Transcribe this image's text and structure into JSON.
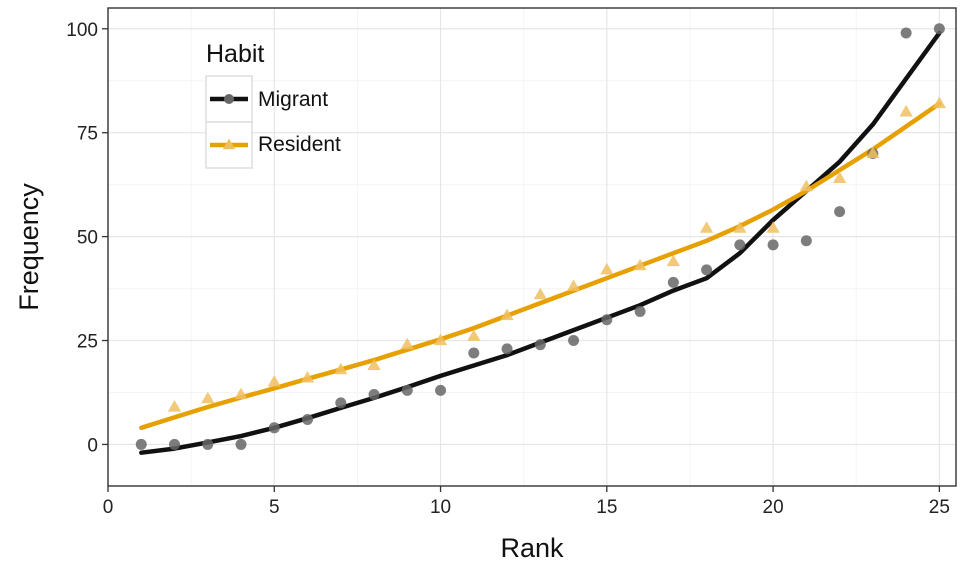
{
  "chart_data": {
    "type": "scatter",
    "xlabel": "Rank",
    "ylabel": "Frequency",
    "xlim": [
      0,
      25.5
    ],
    "ylim": [
      -10,
      105
    ],
    "x_ticks": [
      0,
      5,
      10,
      15,
      20,
      25
    ],
    "y_ticks": [
      0,
      25,
      50,
      75,
      100
    ],
    "grid": true,
    "legend": {
      "title": "Habit",
      "position": "top-left"
    },
    "series": [
      {
        "name": "Migrant",
        "marker": "circle",
        "color": "#111111",
        "point_color": "#666666",
        "points": [
          [
            1,
            0
          ],
          [
            2,
            0
          ],
          [
            3,
            0
          ],
          [
            4,
            0
          ],
          [
            5,
            4
          ],
          [
            6,
            6
          ],
          [
            7,
            10
          ],
          [
            8,
            12
          ],
          [
            9,
            13
          ],
          [
            10,
            13
          ],
          [
            11,
            22
          ],
          [
            12,
            23
          ],
          [
            13,
            24
          ],
          [
            14,
            25
          ],
          [
            15,
            30
          ],
          [
            16,
            32
          ],
          [
            17,
            39
          ],
          [
            18,
            42
          ],
          [
            19,
            48
          ],
          [
            20,
            48
          ],
          [
            21,
            49
          ],
          [
            22,
            56
          ],
          [
            23,
            70
          ],
          [
            24,
            99
          ],
          [
            25,
            100
          ]
        ],
        "trend": [
          [
            1,
            -2
          ],
          [
            2,
            -1
          ],
          [
            3,
            0.5
          ],
          [
            4,
            2
          ],
          [
            5,
            4
          ],
          [
            6,
            6.3
          ],
          [
            7,
            8.8
          ],
          [
            8,
            11.2
          ],
          [
            9,
            13.8
          ],
          [
            10,
            16.5
          ],
          [
            11,
            19
          ],
          [
            12,
            21.5
          ],
          [
            13,
            24.5
          ],
          [
            14,
            27.5
          ],
          [
            15,
            30.5
          ],
          [
            16,
            33.5
          ],
          [
            17,
            37
          ],
          [
            18,
            40
          ],
          [
            19,
            46
          ],
          [
            20,
            54
          ],
          [
            21,
            61
          ],
          [
            22,
            68
          ],
          [
            23,
            77
          ],
          [
            24,
            88
          ],
          [
            25,
            99
          ]
        ]
      },
      {
        "name": "Resident",
        "marker": "triangle",
        "color": "#e6a000",
        "point_color": "#f0c060",
        "points": [
          [
            2,
            9
          ],
          [
            3,
            11
          ],
          [
            4,
            12
          ],
          [
            5,
            15
          ],
          [
            6,
            16
          ],
          [
            7,
            18
          ],
          [
            8,
            19
          ],
          [
            9,
            24
          ],
          [
            10,
            25
          ],
          [
            11,
            26
          ],
          [
            12,
            31
          ],
          [
            13,
            36
          ],
          [
            14,
            38
          ],
          [
            15,
            42
          ],
          [
            16,
            43
          ],
          [
            17,
            44
          ],
          [
            18,
            52
          ],
          [
            19,
            52
          ],
          [
            20,
            52
          ],
          [
            21,
            62
          ],
          [
            22,
            64
          ],
          [
            23,
            70
          ],
          [
            24,
            80
          ],
          [
            25,
            82
          ]
        ],
        "trend": [
          [
            1,
            4
          ],
          [
            2,
            6.5
          ],
          [
            3,
            9
          ],
          [
            4,
            11.3
          ],
          [
            5,
            13.5
          ],
          [
            6,
            15.8
          ],
          [
            7,
            18
          ],
          [
            8,
            20.3
          ],
          [
            9,
            22.8
          ],
          [
            10,
            25.3
          ],
          [
            11,
            28
          ],
          [
            12,
            31
          ],
          [
            13,
            34
          ],
          [
            14,
            37
          ],
          [
            15,
            40
          ],
          [
            16,
            43
          ],
          [
            17,
            46
          ],
          [
            18,
            49
          ],
          [
            19,
            52.5
          ],
          [
            20,
            56.5
          ],
          [
            21,
            61
          ],
          [
            22,
            66
          ],
          [
            23,
            71
          ],
          [
            24,
            76.5
          ],
          [
            25,
            82
          ]
        ]
      }
    ]
  }
}
